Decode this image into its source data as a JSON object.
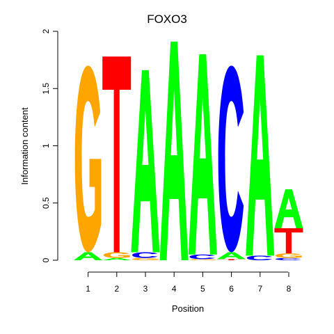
{
  "chart_data": {
    "type": "sequence-logo",
    "title": "FOXO3",
    "xlabel": "Position",
    "ylabel": "Information content",
    "ylim": [
      0,
      2
    ],
    "y_ticks": [
      "0",
      "0.5",
      "1",
      "1.5",
      "2"
    ],
    "x_ticks": [
      "1",
      "2",
      "3",
      "4",
      "5",
      "6",
      "7",
      "8"
    ],
    "colors": {
      "A": "#00ff00",
      "C": "#0000ff",
      "G": "#ffa500",
      "T": "#ff0000"
    },
    "positions": [
      {
        "position": 1,
        "letters": [
          {
            "base": "A",
            "height": 0.07
          },
          {
            "base": "G",
            "height": 1.63
          }
        ]
      },
      {
        "position": 2,
        "letters": [
          {
            "base": "A",
            "height": 0.02
          },
          {
            "base": "G",
            "height": 0.05
          },
          {
            "base": "T",
            "height": 1.71
          }
        ]
      },
      {
        "position": 3,
        "letters": [
          {
            "base": "G",
            "height": 0.02
          },
          {
            "base": "C",
            "height": 0.05
          },
          {
            "base": "A",
            "height": 1.59
          }
        ]
      },
      {
        "position": 4,
        "letters": [
          {
            "base": "A",
            "height": 1.91
          }
        ]
      },
      {
        "position": 5,
        "letters": [
          {
            "base": "G",
            "height": 0.01
          },
          {
            "base": "C",
            "height": 0.04
          },
          {
            "base": "A",
            "height": 1.75
          }
        ]
      },
      {
        "position": 6,
        "letters": [
          {
            "base": "T",
            "height": 0.01
          },
          {
            "base": "A",
            "height": 0.06
          },
          {
            "base": "C",
            "height": 1.63
          }
        ]
      },
      {
        "position": 7,
        "letters": [
          {
            "base": "C",
            "height": 0.04
          },
          {
            "base": "A",
            "height": 1.75
          }
        ]
      },
      {
        "position": 8,
        "letters": [
          {
            "base": "C",
            "height": 0.02
          },
          {
            "base": "G",
            "height": 0.04
          },
          {
            "base": "T",
            "height": 0.22
          },
          {
            "base": "A",
            "height": 0.34
          }
        ]
      }
    ]
  }
}
